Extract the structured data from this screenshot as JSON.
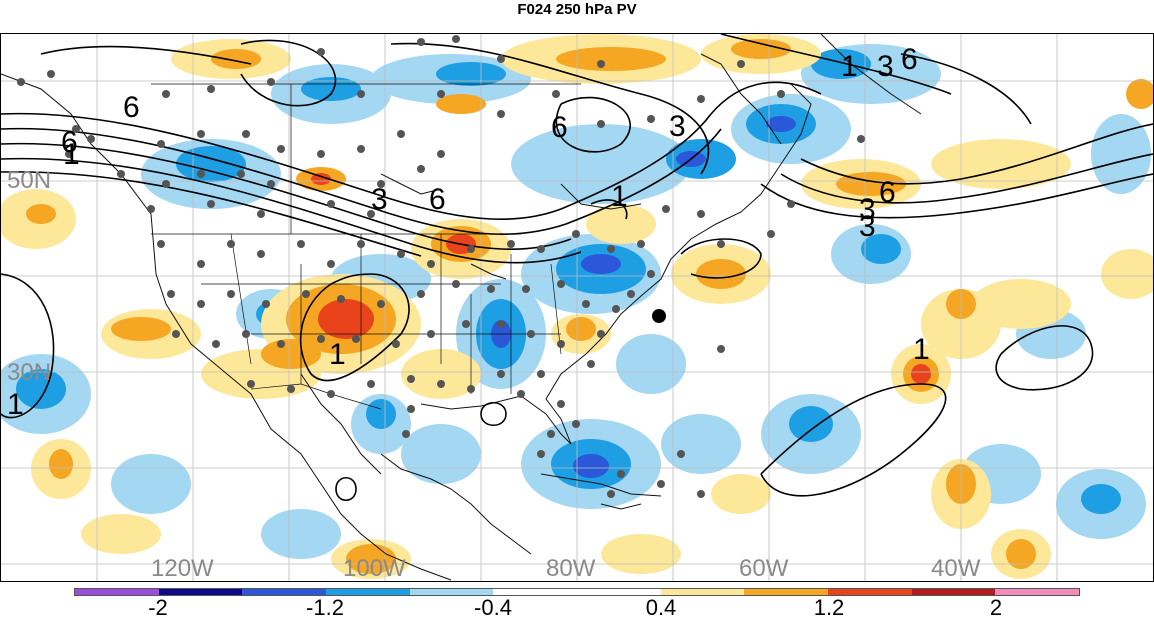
{
  "title": "F024 250 hPa PV",
  "grid_labels": {
    "lon": [
      "120W",
      "100W",
      "80W",
      "60W",
      "40W"
    ],
    "lat": [
      "50N",
      "30N"
    ]
  },
  "contour_labels": [
    "6",
    "6",
    "6",
    "6",
    "6",
    "6",
    "3",
    "3",
    "3",
    "3",
    "3",
    "1",
    "1",
    "1",
    "1",
    "1",
    "1"
  ],
  "colorbar": {
    "colors": [
      "#9b4fd6",
      "#0b0b8a",
      "#2a58d8",
      "#1e9ee3",
      "#a3d7f2",
      "#ffffff",
      "#ffffff",
      "#fde89a",
      "#f5a623",
      "#e8431a",
      "#b21c1c",
      "#f28cbb"
    ],
    "labels": [
      "-2",
      "-1.2",
      "-0.4",
      "0.4",
      "1.2",
      "2"
    ]
  },
  "legend_marker": "filled-circle"
}
